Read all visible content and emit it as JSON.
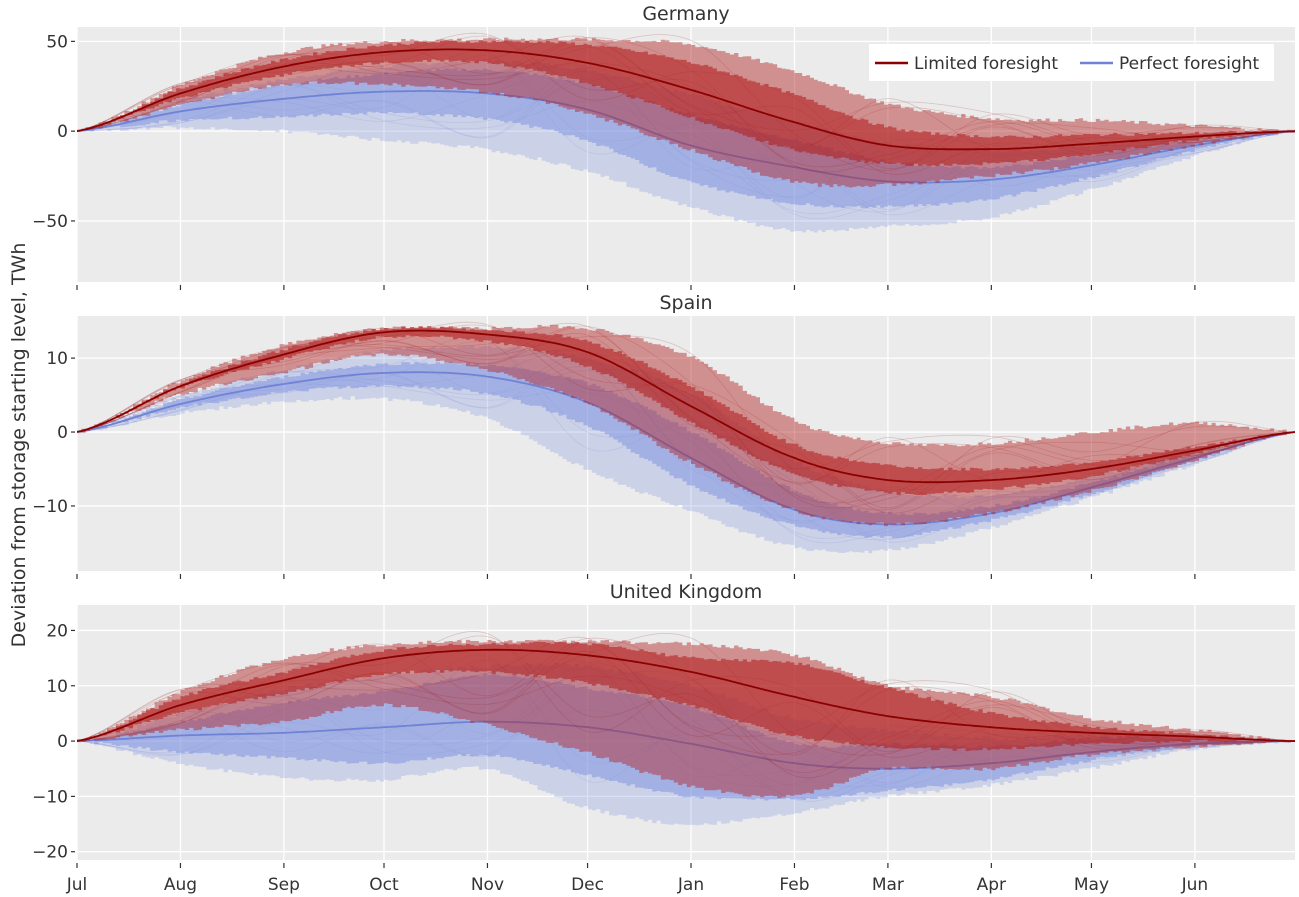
{
  "chart_data": {
    "type": "area",
    "ylabel": "Deviation from storage starting level, TWh",
    "xlabel": "",
    "x_unit": "day of storage year (0 = 1 Jul, 365 = 30 Jun)",
    "x_tick_labels": [
      "Jul",
      "Aug",
      "Sep",
      "Oct",
      "Nov",
      "Dec",
      "Jan",
      "Feb",
      "Mar",
      "Apr",
      "May",
      "Jun"
    ],
    "x_tick_days": [
      0,
      31,
      62,
      92,
      123,
      153,
      184,
      215,
      243,
      274,
      304,
      335
    ],
    "xlim": [
      0,
      365
    ],
    "grid": true,
    "legend": {
      "position": "top-right",
      "entries": [
        {
          "name": "Limited foresight",
          "color": "#8b0000"
        },
        {
          "name": "Perfect foresight",
          "color": "#6f82d6"
        }
      ]
    },
    "colors": {
      "limited_line": "#8b0000",
      "limited_band": "#b22222",
      "perfect_line": "#6f82d6",
      "perfect_band": "#7b8fe0",
      "panel_bg": "#ebebeb",
      "grid": "#ffffff"
    },
    "x": [
      0,
      31,
      62,
      92,
      123,
      153,
      184,
      215,
      243,
      274,
      304,
      335,
      365
    ],
    "panels": [
      {
        "title": "Germany",
        "ylim": [
          -84,
          58
        ],
        "yticks": [
          -50,
          0,
          50
        ],
        "ytick_labels": [
          "−50",
          "0",
          "50"
        ],
        "series": [
          {
            "name": "Limited foresight",
            "median": [
              0,
              21,
              36,
              44,
              45,
              38,
              23,
              5,
              -8,
              -10,
              -7,
              -3,
              0
            ],
            "inner_low": [
              0,
              18,
              31,
              38,
              38,
              27,
              8,
              -10,
              -18,
              -18,
              -13,
              -5,
              0
            ],
            "inner_high": [
              0,
              24,
              40,
              48,
              50,
              48,
              38,
              20,
              2,
              -3,
              -2,
              -1,
              0
            ],
            "outer_low": [
              0,
              14,
              26,
              26,
              22,
              10,
              -10,
              -28,
              -30,
              -25,
              -18,
              -8,
              0
            ],
            "outer_high": [
              0,
              26,
              44,
              50,
              51,
              51,
              48,
              33,
              15,
              7,
              6,
              3,
              0
            ]
          },
          {
            "name": "Perfect foresight",
            "median": [
              0,
              11,
              18,
              22,
              21,
              12,
              -8,
              -20,
              -28,
              -27,
              -19,
              -8,
              0
            ],
            "inner_low": [
              0,
              6,
              8,
              10,
              7,
              -5,
              -28,
              -40,
              -42,
              -38,
              -26,
              -11,
              0
            ],
            "inner_high": [
              0,
              15,
              26,
              32,
              34,
              26,
              9,
              -5,
              -17,
              -20,
              -13,
              -5,
              0
            ],
            "outer_low": [
              0,
              2,
              0,
              -5,
              -10,
              -22,
              -42,
              -55,
              -53,
              -48,
              -33,
              -14,
              0
            ],
            "outer_high": [
              0,
              17,
              29,
              36,
              39,
              34,
              20,
              5,
              -7,
              -11,
              -8,
              -3,
              0
            ]
          }
        ]
      },
      {
        "title": "Spain",
        "ylim": [
          -18.8,
          15.7
        ],
        "yticks": [
          -10,
          0,
          10
        ],
        "ytick_labels": [
          "−10",
          "0",
          "10"
        ],
        "series": [
          {
            "name": "Limited foresight",
            "median": [
              0,
              6.2,
              10.5,
              13.5,
              13.2,
              10.8,
              3.5,
              -3.5,
              -6.5,
              -6.5,
              -5,
              -2.5,
              0
            ],
            "inner_low": [
              0,
              5.8,
              9.8,
              12.8,
              12.3,
              9.0,
              1.5,
              -5.5,
              -8.2,
              -7.8,
              -6,
              -3,
              0
            ],
            "inner_high": [
              0,
              6.6,
              11.2,
              14,
              13.8,
              12.2,
              6,
              -1.8,
              -4.5,
              -5,
              -4,
              -2,
              0
            ],
            "outer_low": [
              0,
              5.0,
              8.0,
              10.5,
              8.5,
              4,
              -4,
              -10.5,
              -12.5,
              -11,
              -8,
              -4,
              0
            ],
            "outer_high": [
              0,
              7.0,
              11.8,
              14,
              14,
              14,
              10,
              1.5,
              -1.5,
              -1.5,
              0,
              1.2,
              0
            ]
          },
          {
            "name": "Perfect foresight",
            "median": [
              0,
              3.8,
              6.5,
              8,
              7.5,
              4,
              -3.5,
              -10.5,
              -12.5,
              -11,
              -7.5,
              -3.5,
              0
            ],
            "inner_low": [
              0,
              3.2,
              5.3,
              6.2,
              5.2,
              1,
              -7,
              -12.5,
              -14.2,
              -12,
              -8.5,
              -4,
              0
            ],
            "inner_high": [
              0,
              4.4,
              7.5,
              9.2,
              9,
              6.5,
              0,
              -8,
              -11,
              -10,
              -6.8,
              -3,
              0
            ],
            "outer_low": [
              0,
              2.5,
              4,
              4.5,
              2,
              -5,
              -10.5,
              -15.5,
              -16,
              -13,
              -9,
              -4.5,
              0
            ],
            "outer_high": [
              0,
              4.8,
              8.5,
              11,
              11.5,
              10,
              5,
              -4,
              -8,
              -8.5,
              -6,
              -2.5,
              0
            ]
          }
        ]
      },
      {
        "title": "United Kingdom",
        "ylim": [
          -21.5,
          24.6
        ],
        "yticks": [
          -20,
          -10,
          0,
          10,
          20
        ],
        "ytick_labels": [
          "−20",
          "−10",
          "0",
          "10",
          "20"
        ],
        "series": [
          {
            "name": "Limited foresight",
            "median": [
              0,
              6.5,
              11,
              15,
              16.5,
              15.5,
              12.5,
              8,
              4.5,
              2.5,
              1.5,
              0.8,
              0
            ],
            "inner_low": [
              0,
              5,
              8.5,
              12,
              12.5,
              10.5,
              6.5,
              1,
              -1,
              -1.5,
              -0.5,
              0,
              0
            ],
            "inner_high": [
              0,
              8,
              12.5,
              16.5,
              17.5,
              17.5,
              15,
              14,
              9.5,
              5,
              2.5,
              1.2,
              0
            ],
            "outer_low": [
              0,
              2,
              3.5,
              6.5,
              3,
              -2,
              -8,
              -10,
              -5,
              -5,
              -2.5,
              -1,
              0
            ],
            "outer_high": [
              0,
              9,
              15,
              17.5,
              18,
              18,
              17.5,
              15.5,
              10,
              8,
              4,
              2,
              0
            ]
          },
          {
            "name": "Perfect foresight",
            "median": [
              0,
              1,
              1.5,
              2.5,
              3.5,
              2.5,
              -0.5,
              -4,
              -5,
              -4,
              -2,
              -0.5,
              0
            ],
            "inner_low": [
              0,
              -2,
              -3,
              -4,
              -2.5,
              -6,
              -10,
              -10.5,
              -9,
              -7,
              -3.5,
              -1,
              0
            ],
            "inner_high": [
              0,
              3.5,
              7,
              9,
              12,
              9.5,
              6,
              -0.5,
              -0.5,
              -1,
              0.5,
              0.5,
              0
            ],
            "outer_low": [
              0,
              -4,
              -6.5,
              -7,
              -5,
              -12,
              -15,
              -13,
              -10,
              -8,
              -5,
              -1.5,
              0
            ],
            "outer_high": [
              0,
              5,
              9.5,
              12,
              13.5,
              13.5,
              10,
              4,
              2,
              0.5,
              1,
              0.8,
              0
            ]
          }
        ]
      }
    ]
  }
}
